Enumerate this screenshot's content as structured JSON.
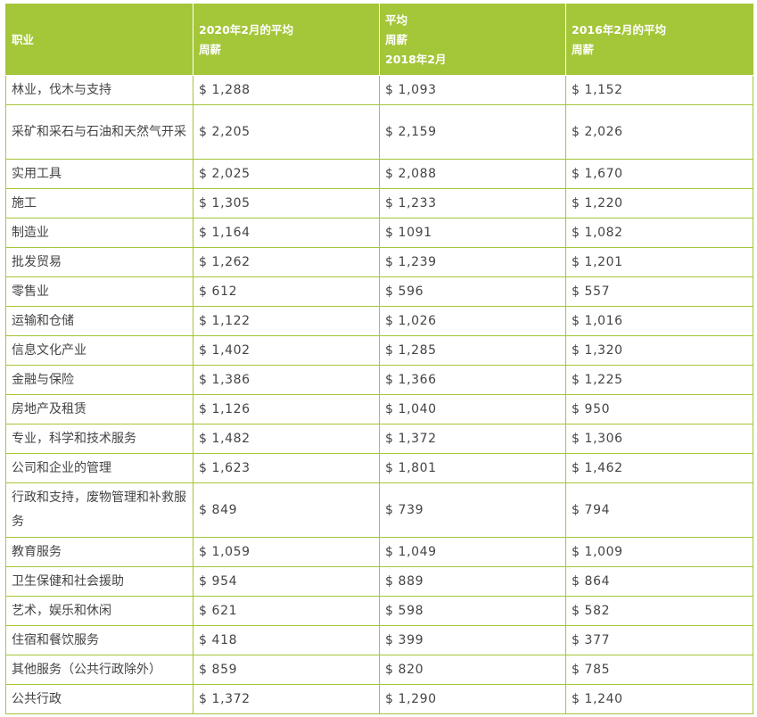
{
  "table": {
    "headers": {
      "occupation": "职业",
      "wage_2020": "2020年2月的平均周薪",
      "wage_2018": [
        "平均",
        "周薪",
        "2018年2月"
      ],
      "wage_2016": "2016年2月的平均周薪"
    },
    "rows": [
      {
        "occupation": "林业，伐木与支持",
        "w2020": "$ 1,288",
        "w2018": "$ 1,093",
        "w2016": "$ 1,152"
      },
      {
        "occupation": "采矿和采石与石油和天然气开采",
        "w2020": "$ 2,205",
        "w2018": "$ 2,159",
        "w2016": "$ 2,026"
      },
      {
        "occupation": "实用工具",
        "w2020": "$ 2,025",
        "w2018": "$ 2,088",
        "w2016": "$ 1,670"
      },
      {
        "occupation": "施工",
        "w2020": "$ 1,305",
        "w2018": "$ 1,233",
        "w2016": "$ 1,220"
      },
      {
        "occupation": "制造业",
        "w2020": "$ 1,164",
        "w2018": "$ 1091",
        "w2016": "$ 1,082"
      },
      {
        "occupation": "批发贸易",
        "w2020": "$ 1,262",
        "w2018": "$ 1,239",
        "w2016": "$ 1,201"
      },
      {
        "occupation": "零售业",
        "w2020": "$ 612",
        "w2018": "$ 596",
        "w2016": "$ 557"
      },
      {
        "occupation": "运输和仓储",
        "w2020": "$ 1,122",
        "w2018": "$ 1,026",
        "w2016": "$ 1,016"
      },
      {
        "occupation": "信息文化产业",
        "w2020": "$ 1,402",
        "w2018": "$ 1,285",
        "w2016": "$ 1,320"
      },
      {
        "occupation": "金融与保险",
        "w2020": "$ 1,386",
        "w2018": "$ 1,366",
        "w2016": "$ 1,225"
      },
      {
        "occupation": "房地产及租赁",
        "w2020": "$ 1,126",
        "w2018": "$ 1,040",
        "w2016": "$ 950"
      },
      {
        "occupation": "专业，科学和技术服务",
        "w2020": "$ 1,482",
        "w2018": "$ 1,372",
        "w2016": "$ 1,306"
      },
      {
        "occupation": "公司和企业的管理",
        "w2020": "$ 1,623",
        "w2018": "$ 1,801",
        "w2016": "$ 1,462"
      },
      {
        "occupation": "行政和支持，废物管理和补救服务",
        "w2020": "$ 849",
        "w2018": "$ 739",
        "w2016": "$ 794"
      },
      {
        "occupation": "教育服务",
        "w2020": "$ 1,059",
        "w2018": "$ 1,049",
        "w2016": "$ 1,009"
      },
      {
        "occupation": "卫生保健和社会援助",
        "w2020": "$ 954",
        "w2018": "$ 889",
        "w2016": "$ 864"
      },
      {
        "occupation": "艺术，娱乐和休闲",
        "w2020": "$ 621",
        "w2018": "$ 598",
        "w2016": "$ 582"
      },
      {
        "occupation": "住宿和餐饮服务",
        "w2020": "$ 418",
        "w2018": "$ 399",
        "w2016": "$ 377"
      },
      {
        "occupation": "其他服务（公共行政除外）",
        "w2020": "$ 859",
        "w2018": "$ 820",
        "w2016": "$ 785"
      },
      {
        "occupation": "公共行政",
        "w2020": "$ 1,372",
        "w2018": "$ 1,290",
        "w2016": "$ 1,240"
      }
    ]
  },
  "colors": {
    "header_background": "#a4c639",
    "border": "#a4c639",
    "text": "#444444"
  }
}
